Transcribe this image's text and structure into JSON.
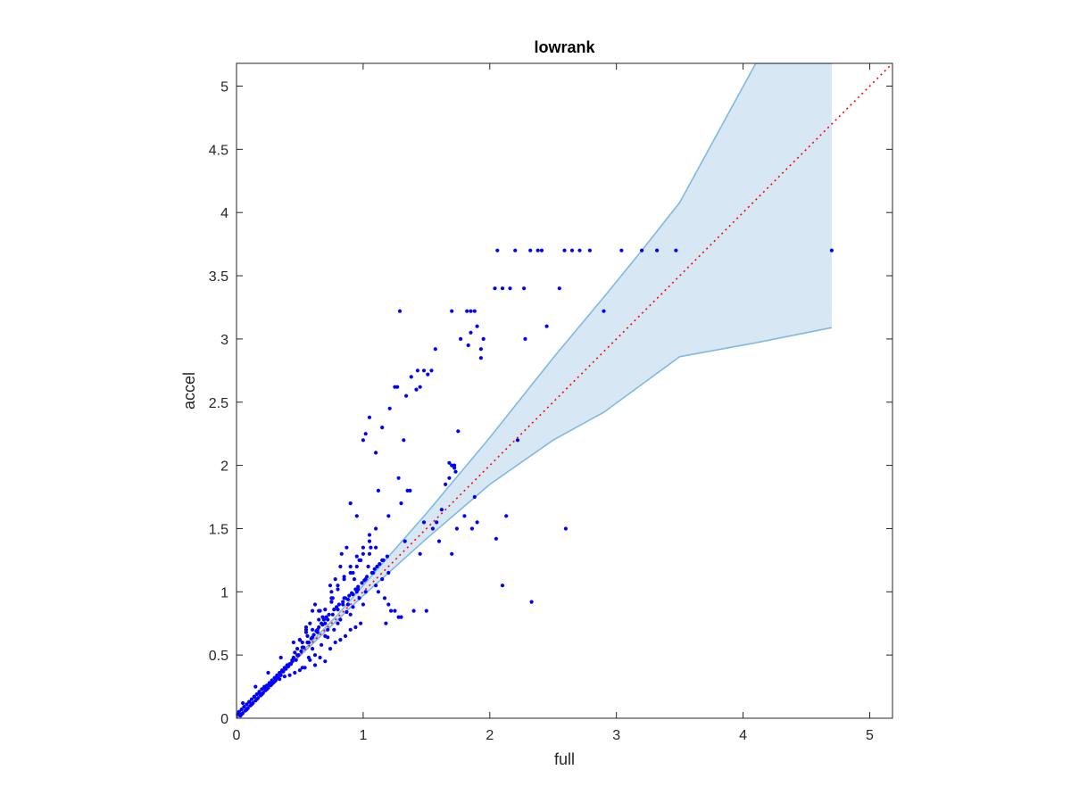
{
  "chart_data": {
    "type": "scatter",
    "title": "lowrank",
    "xlabel": "full",
    "ylabel": "accel",
    "xlim": [
      0,
      5.18
    ],
    "ylim": [
      0,
      5.18
    ],
    "grid": false,
    "xticks": [
      0,
      1,
      2,
      3,
      4,
      5
    ],
    "xtick_labels": [
      "0",
      "1",
      "2",
      "3",
      "4",
      "5"
    ],
    "yticks": [
      0,
      0.5,
      1,
      1.5,
      2,
      2.5,
      3,
      3.5,
      4,
      4.5,
      5
    ],
    "ytick_labels": [
      "0",
      "0.5",
      "1",
      "1.5",
      "2",
      "2.5",
      "3",
      "3.5",
      "4",
      "4.5",
      "5"
    ],
    "colors": {
      "points": "#0000ff",
      "band_fill": "#d7e7f4",
      "band_edge": "#80b9e0",
      "identity": "#ff0000",
      "axes": "#262626"
    },
    "identity_line": {
      "x": [
        0,
        5.18
      ],
      "y": [
        0,
        5.18
      ],
      "style": "dotted"
    },
    "band": {
      "x": [
        0.0,
        0.3,
        0.8,
        1.0,
        1.5,
        2.0,
        2.5,
        2.9,
        3.2,
        3.5,
        4.1,
        4.7
      ],
      "upper": [
        0.0,
        0.3,
        0.82,
        1.05,
        1.62,
        2.22,
        2.85,
        3.33,
        3.7,
        4.08,
        5.18,
        5.18
      ],
      "lower": [
        0.0,
        0.3,
        0.78,
        0.97,
        1.42,
        1.85,
        2.2,
        2.42,
        2.64,
        2.86,
        2.97,
        3.09
      ]
    },
    "points": {
      "x": [
        2.06,
        2.2,
        2.32,
        2.38,
        2.41,
        2.59,
        2.65,
        2.71,
        2.79,
        3.04,
        3.2,
        3.32,
        3.47,
        4.7,
        2.04,
        2.1,
        2.16,
        2.27,
        2.55,
        1.29,
        1.7,
        1.82,
        1.85,
        1.88,
        2.45,
        2.9,
        1.77,
        1.95,
        1.83,
        1.93,
        1.9,
        2.28,
        1.85,
        1.93,
        1.57,
        1.54,
        1.48,
        1.43,
        1.38,
        1.42,
        1.51,
        1.25,
        1.27,
        1.34,
        1.45,
        1.32,
        1.21,
        1.05,
        1.15,
        1.75,
        1.7,
        1.68,
        1.72,
        1.02,
        1.0,
        2.22,
        0.9,
        0.95,
        1.1,
        1.12,
        1.28,
        1.35,
        1.37,
        1.55,
        1.62,
        1.65,
        1.73,
        1.68,
        1.72,
        1.88,
        1.9,
        2.13,
        2.05,
        2.6,
        1.48,
        1.2,
        1.1,
        1.05,
        1.3,
        1.33,
        1.45,
        1.58,
        1.6,
        1.7,
        1.74,
        1.8,
        1.86,
        2.1,
        2.33,
        1.5,
        1.4,
        1.28,
        1.22,
        1.18,
        0.85,
        0.88,
        0.92,
        0.97,
        0.75,
        0.78,
        0.8,
        0.82,
        0.83,
        0.87,
        0.9,
        0.93,
        0.95,
        0.98,
        1.0,
        1.02,
        1.04,
        1.06,
        1.08,
        1.1,
        1.12,
        1.15,
        1.17,
        1.2,
        1.25,
        1.3,
        0.7,
        0.72,
        0.74,
        0.76,
        0.66,
        0.68,
        0.62,
        0.64,
        0.6,
        0.58,
        0.56,
        0.55,
        0.52,
        0.5,
        0.48,
        0.46,
        0.45,
        0.44,
        0.42,
        0.4,
        0.38,
        0.36,
        0.34,
        0.32,
        0.3,
        0.28,
        0.26,
        0.24,
        0.22,
        0.2,
        0.18,
        0.16,
        0.14,
        0.12,
        0.1,
        0.08,
        0.06,
        0.04,
        0.02,
        0.01,
        0.03,
        0.05,
        0.07,
        0.09,
        0.11,
        0.13,
        0.15,
        0.17,
        0.19,
        0.21,
        0.23,
        0.25,
        0.27,
        0.29,
        0.31,
        0.33,
        0.35,
        0.37,
        0.39,
        0.41,
        0.43,
        0.47,
        0.49,
        0.51,
        0.53,
        0.57,
        0.59,
        0.61,
        0.63,
        0.65,
        0.67,
        0.69,
        0.71,
        0.73,
        0.77,
        0.79,
        0.81,
        0.84,
        0.86,
        0.89,
        0.91,
        0.94,
        0.96,
        0.99,
        1.01,
        1.03,
        1.07,
        1.09,
        1.11,
        1.13,
        1.16,
        1.19,
        0.74,
        0.78,
        0.82,
        0.86,
        0.9,
        0.94,
        0.98,
        0.7,
        0.66,
        0.62,
        0.58,
        0.54,
        0.5,
        0.46,
        0.42,
        0.38,
        0.34,
        0.3,
        0.26,
        0.22,
        0.18,
        0.14,
        0.1,
        0.06,
        0.02,
        0.04,
        0.08,
        0.12,
        0.16,
        0.2,
        0.24,
        0.28,
        0.32,
        0.36,
        0.4,
        0.44,
        0.48,
        0.52,
        0.56,
        0.6,
        0.64,
        0.68,
        0.72,
        0.76,
        0.8,
        0.84,
        0.88,
        0.92,
        0.96,
        0.65,
        0.55,
        0.45,
        0.35,
        0.25,
        0.15,
        0.05,
        0.6,
        0.7,
        0.8,
        0.9,
        1.0,
        0.75,
        0.85,
        0.95,
        1.05,
        0.5,
        0.55,
        0.6,
        0.65,
        0.7,
        0.75,
        0.8,
        0.85,
        0.9,
        0.95,
        1.0,
        1.05,
        1.1,
        1.15,
        1.2,
        0.52,
        0.57,
        0.62,
        0.67,
        0.72,
        0.77,
        0.82,
        0.87,
        0.92,
        0.97,
        1.02
      ],
      "y": [
        3.7,
        3.7,
        3.7,
        3.7,
        3.7,
        3.7,
        3.7,
        3.7,
        3.7,
        3.7,
        3.7,
        3.7,
        3.7,
        3.7,
        3.4,
        3.4,
        3.4,
        3.4,
        3.4,
        3.22,
        3.22,
        3.22,
        3.22,
        3.22,
        3.1,
        3.22,
        3.0,
        3.0,
        2.95,
        2.92,
        3.1,
        3.0,
        3.05,
        2.85,
        2.92,
        2.75,
        2.75,
        2.75,
        2.7,
        2.6,
        2.72,
        2.62,
        2.62,
        2.55,
        2.62,
        2.2,
        2.45,
        2.38,
        2.3,
        2.27,
        2.0,
        2.02,
        1.98,
        2.25,
        2.2,
        2.2,
        1.7,
        1.6,
        2.1,
        1.8,
        1.9,
        1.8,
        1.8,
        1.5,
        1.65,
        1.85,
        1.95,
        1.9,
        2.0,
        1.75,
        1.55,
        1.6,
        1.42,
        1.5,
        1.55,
        1.6,
        1.5,
        1.45,
        1.7,
        1.4,
        1.3,
        1.55,
        1.4,
        1.3,
        1.5,
        1.6,
        1.5,
        1.05,
        0.92,
        0.85,
        0.85,
        0.8,
        0.85,
        0.75,
        0.95,
        0.9,
        1.15,
        1.25,
        1.0,
        1.1,
        1.05,
        1.2,
        1.3,
        1.35,
        1.15,
        1.1,
        1.0,
        1.25,
        1.3,
        1.1,
        1.2,
        1.35,
        1.15,
        1.05,
        1.0,
        1.1,
        0.95,
        0.9,
        0.85,
        0.8,
        0.75,
        0.7,
        1.05,
        0.95,
        0.85,
        0.8,
        0.9,
        0.7,
        0.85,
        0.75,
        0.65,
        0.7,
        0.6,
        0.62,
        0.55,
        0.52,
        0.48,
        0.45,
        0.43,
        0.42,
        0.4,
        0.38,
        0.36,
        0.34,
        0.32,
        0.3,
        0.28,
        0.26,
        0.25,
        0.23,
        0.21,
        0.19,
        0.17,
        0.15,
        0.13,
        0.11,
        0.09,
        0.07,
        0.05,
        0.03,
        0.02,
        0.04,
        0.06,
        0.08,
        0.1,
        0.12,
        0.14,
        0.16,
        0.18,
        0.2,
        0.22,
        0.24,
        0.26,
        0.28,
        0.3,
        0.32,
        0.34,
        0.37,
        0.39,
        0.41,
        0.43,
        0.46,
        0.5,
        0.53,
        0.56,
        0.6,
        0.63,
        0.66,
        0.69,
        0.72,
        0.75,
        0.78,
        0.8,
        0.82,
        0.86,
        0.88,
        0.9,
        0.92,
        0.95,
        0.97,
        0.99,
        1.02,
        1.04,
        1.07,
        1.09,
        1.12,
        1.15,
        1.18,
        1.2,
        1.22,
        1.25,
        1.28,
        0.55,
        0.6,
        0.62,
        0.65,
        0.7,
        0.72,
        0.75,
        0.45,
        0.48,
        0.42,
        0.46,
        0.4,
        0.38,
        0.36,
        0.34,
        0.33,
        0.31,
        0.29,
        0.27,
        0.24,
        0.2,
        0.17,
        0.13,
        0.09,
        0.05,
        0.03,
        0.07,
        0.11,
        0.15,
        0.19,
        0.23,
        0.27,
        0.33,
        0.37,
        0.42,
        0.46,
        0.5,
        0.56,
        0.6,
        0.64,
        0.68,
        0.74,
        0.78,
        0.82,
        0.86,
        0.9,
        0.94,
        0.98,
        1.02,
        0.85,
        0.72,
        0.6,
        0.48,
        0.36,
        0.25,
        0.12,
        0.55,
        0.65,
        0.75,
        0.82,
        0.9,
        0.95,
        1.1,
        1.2,
        1.3,
        0.62,
        0.68,
        0.7,
        0.78,
        0.86,
        0.92,
        1.02,
        1.12,
        1.2,
        1.28,
        1.35,
        1.4,
        1.35,
        1.25,
        1.15,
        0.4,
        0.48,
        0.5,
        0.58,
        0.64,
        0.7,
        0.78,
        0.84,
        0.88,
        0.95,
        1.0
      ]
    }
  }
}
